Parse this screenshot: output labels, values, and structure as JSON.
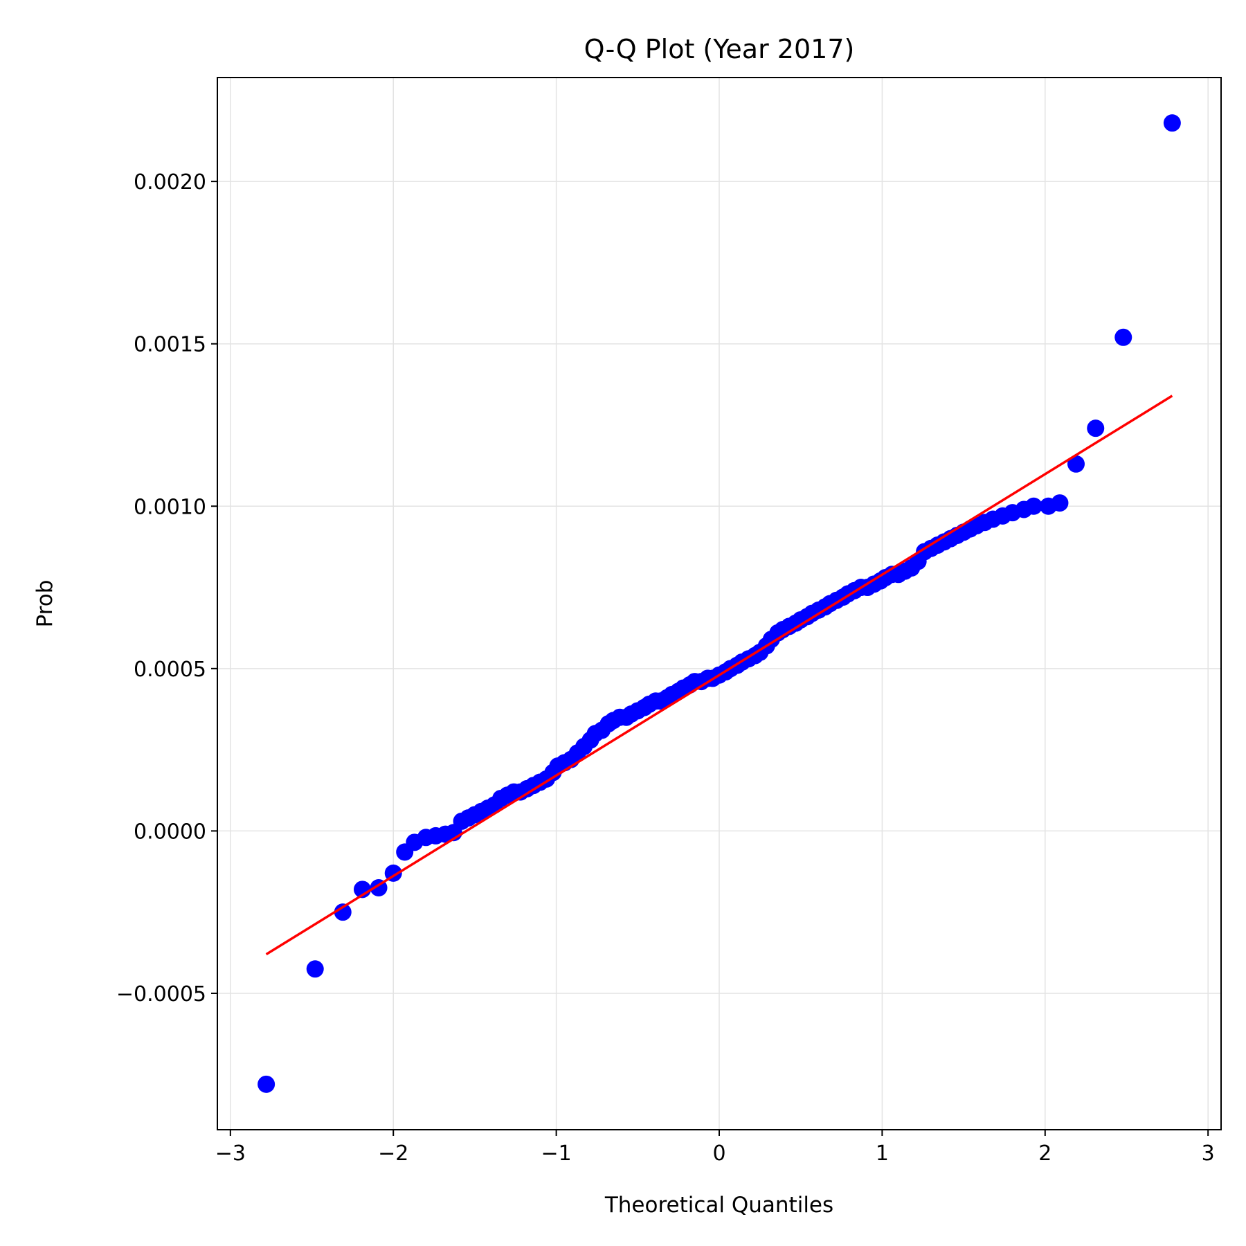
{
  "chart_data": {
    "type": "scatter",
    "title": "Q-Q Plot (Year 2017)",
    "xlabel": "Theoretical Quantiles",
    "ylabel": "Prob",
    "xlim": [
      -3.08,
      3.08
    ],
    "ylim": [
      -0.00092,
      0.00232
    ],
    "x_ticks": [
      -3,
      -2,
      -1,
      0,
      1,
      2,
      3
    ],
    "x_tick_labels": [
      "−3",
      "−2",
      "−1",
      "0",
      "1",
      "2",
      "3"
    ],
    "y_ticks": [
      -0.0005,
      0.0,
      0.0005,
      0.001,
      0.0015,
      0.002
    ],
    "y_tick_labels": [
      "−0.0005",
      "0.0000",
      "0.0005",
      "0.0010",
      "0.0015",
      "0.0020"
    ],
    "grid": true,
    "point_color": "#0000ff",
    "line_color": "#ff0000",
    "points": [
      [
        -2.78,
        -0.00078
      ],
      [
        -2.48,
        -0.000425
      ],
      [
        -2.31,
        -0.00025
      ],
      [
        -2.19,
        -0.00018
      ],
      [
        -2.09,
        -0.000175
      ],
      [
        -2.0,
        -0.00013
      ],
      [
        -1.93,
        -6.5e-05
      ],
      [
        -1.87,
        -3.5e-05
      ],
      [
        -1.8,
        -2e-05
      ],
      [
        -1.74,
        -1.5e-05
      ],
      [
        -1.68,
        -1e-05
      ],
      [
        -1.63,
        -5e-06
      ],
      [
        -1.58,
        3e-05
      ],
      [
        -1.54,
        4e-05
      ],
      [
        -1.5,
        5e-05
      ],
      [
        -1.46,
        6e-05
      ],
      [
        -1.42,
        7e-05
      ],
      [
        -1.38,
        8e-05
      ],
      [
        -1.34,
        0.0001
      ],
      [
        -1.3,
        0.00011
      ],
      [
        -1.26,
        0.00012
      ],
      [
        -1.22,
        0.00012
      ],
      [
        -1.18,
        0.00013
      ],
      [
        -1.14,
        0.00014
      ],
      [
        -1.1,
        0.00015
      ],
      [
        -1.06,
        0.00016
      ],
      [
        -1.02,
        0.00018
      ],
      [
        -0.99,
        0.0002
      ],
      [
        -0.95,
        0.00021
      ],
      [
        -0.91,
        0.00022
      ],
      [
        -0.87,
        0.00024
      ],
      [
        -0.83,
        0.00026
      ],
      [
        -0.79,
        0.00028
      ],
      [
        -0.76,
        0.0003
      ],
      [
        -0.72,
        0.00031
      ],
      [
        -0.68,
        0.00033
      ],
      [
        -0.65,
        0.00034
      ],
      [
        -0.61,
        0.00035
      ],
      [
        -0.57,
        0.00035
      ],
      [
        -0.54,
        0.00036
      ],
      [
        -0.5,
        0.00037
      ],
      [
        -0.46,
        0.00038
      ],
      [
        -0.43,
        0.00039
      ],
      [
        -0.39,
        0.0004
      ],
      [
        -0.36,
        0.0004
      ],
      [
        -0.32,
        0.00041
      ],
      [
        -0.29,
        0.00042
      ],
      [
        -0.25,
        0.00043
      ],
      [
        -0.22,
        0.00044
      ],
      [
        -0.18,
        0.00045
      ],
      [
        -0.15,
        0.00046
      ],
      [
        -0.11,
        0.00046
      ],
      [
        -0.07,
        0.00047
      ],
      [
        -0.04,
        0.00047
      ],
      [
        0.0,
        0.00048
      ],
      [
        0.04,
        0.00049
      ],
      [
        0.07,
        0.0005
      ],
      [
        0.11,
        0.00051
      ],
      [
        0.14,
        0.00052
      ],
      [
        0.18,
        0.00053
      ],
      [
        0.22,
        0.00054
      ],
      [
        0.25,
        0.00055
      ],
      [
        0.29,
        0.00057
      ],
      [
        0.32,
        0.00059
      ],
      [
        0.36,
        0.00061
      ],
      [
        0.39,
        0.00062
      ],
      [
        0.43,
        0.00063
      ],
      [
        0.47,
        0.00064
      ],
      [
        0.5,
        0.00065
      ],
      [
        0.54,
        0.00066
      ],
      [
        0.57,
        0.00067
      ],
      [
        0.61,
        0.00068
      ],
      [
        0.65,
        0.00069
      ],
      [
        0.68,
        0.0007
      ],
      [
        0.72,
        0.00071
      ],
      [
        0.76,
        0.00072
      ],
      [
        0.79,
        0.00073
      ],
      [
        0.83,
        0.00074
      ],
      [
        0.87,
        0.00075
      ],
      [
        0.91,
        0.00075
      ],
      [
        0.95,
        0.00076
      ],
      [
        0.99,
        0.00077
      ],
      [
        1.02,
        0.00078
      ],
      [
        1.06,
        0.00079
      ],
      [
        1.1,
        0.00079
      ],
      [
        1.14,
        0.0008
      ],
      [
        1.18,
        0.00081
      ],
      [
        1.22,
        0.00083
      ],
      [
        1.26,
        0.00086
      ],
      [
        1.3,
        0.00087
      ],
      [
        1.34,
        0.00088
      ],
      [
        1.38,
        0.00089
      ],
      [
        1.42,
        0.0009
      ],
      [
        1.46,
        0.00091
      ],
      [
        1.5,
        0.00092
      ],
      [
        1.54,
        0.00093
      ],
      [
        1.58,
        0.00094
      ],
      [
        1.63,
        0.00095
      ],
      [
        1.68,
        0.00096
      ],
      [
        1.74,
        0.00097
      ],
      [
        1.8,
        0.00098
      ],
      [
        1.87,
        0.00099
      ],
      [
        1.93,
        0.001
      ],
      [
        2.02,
        0.001
      ],
      [
        2.09,
        0.00101
      ],
      [
        2.19,
        0.00113
      ],
      [
        2.31,
        0.00124
      ],
      [
        2.48,
        0.00152
      ],
      [
        2.78,
        0.00218
      ]
    ],
    "fit_line": {
      "x": [
        -2.78,
        2.78
      ],
      "y": [
        -0.00038,
        0.00134
      ]
    }
  }
}
